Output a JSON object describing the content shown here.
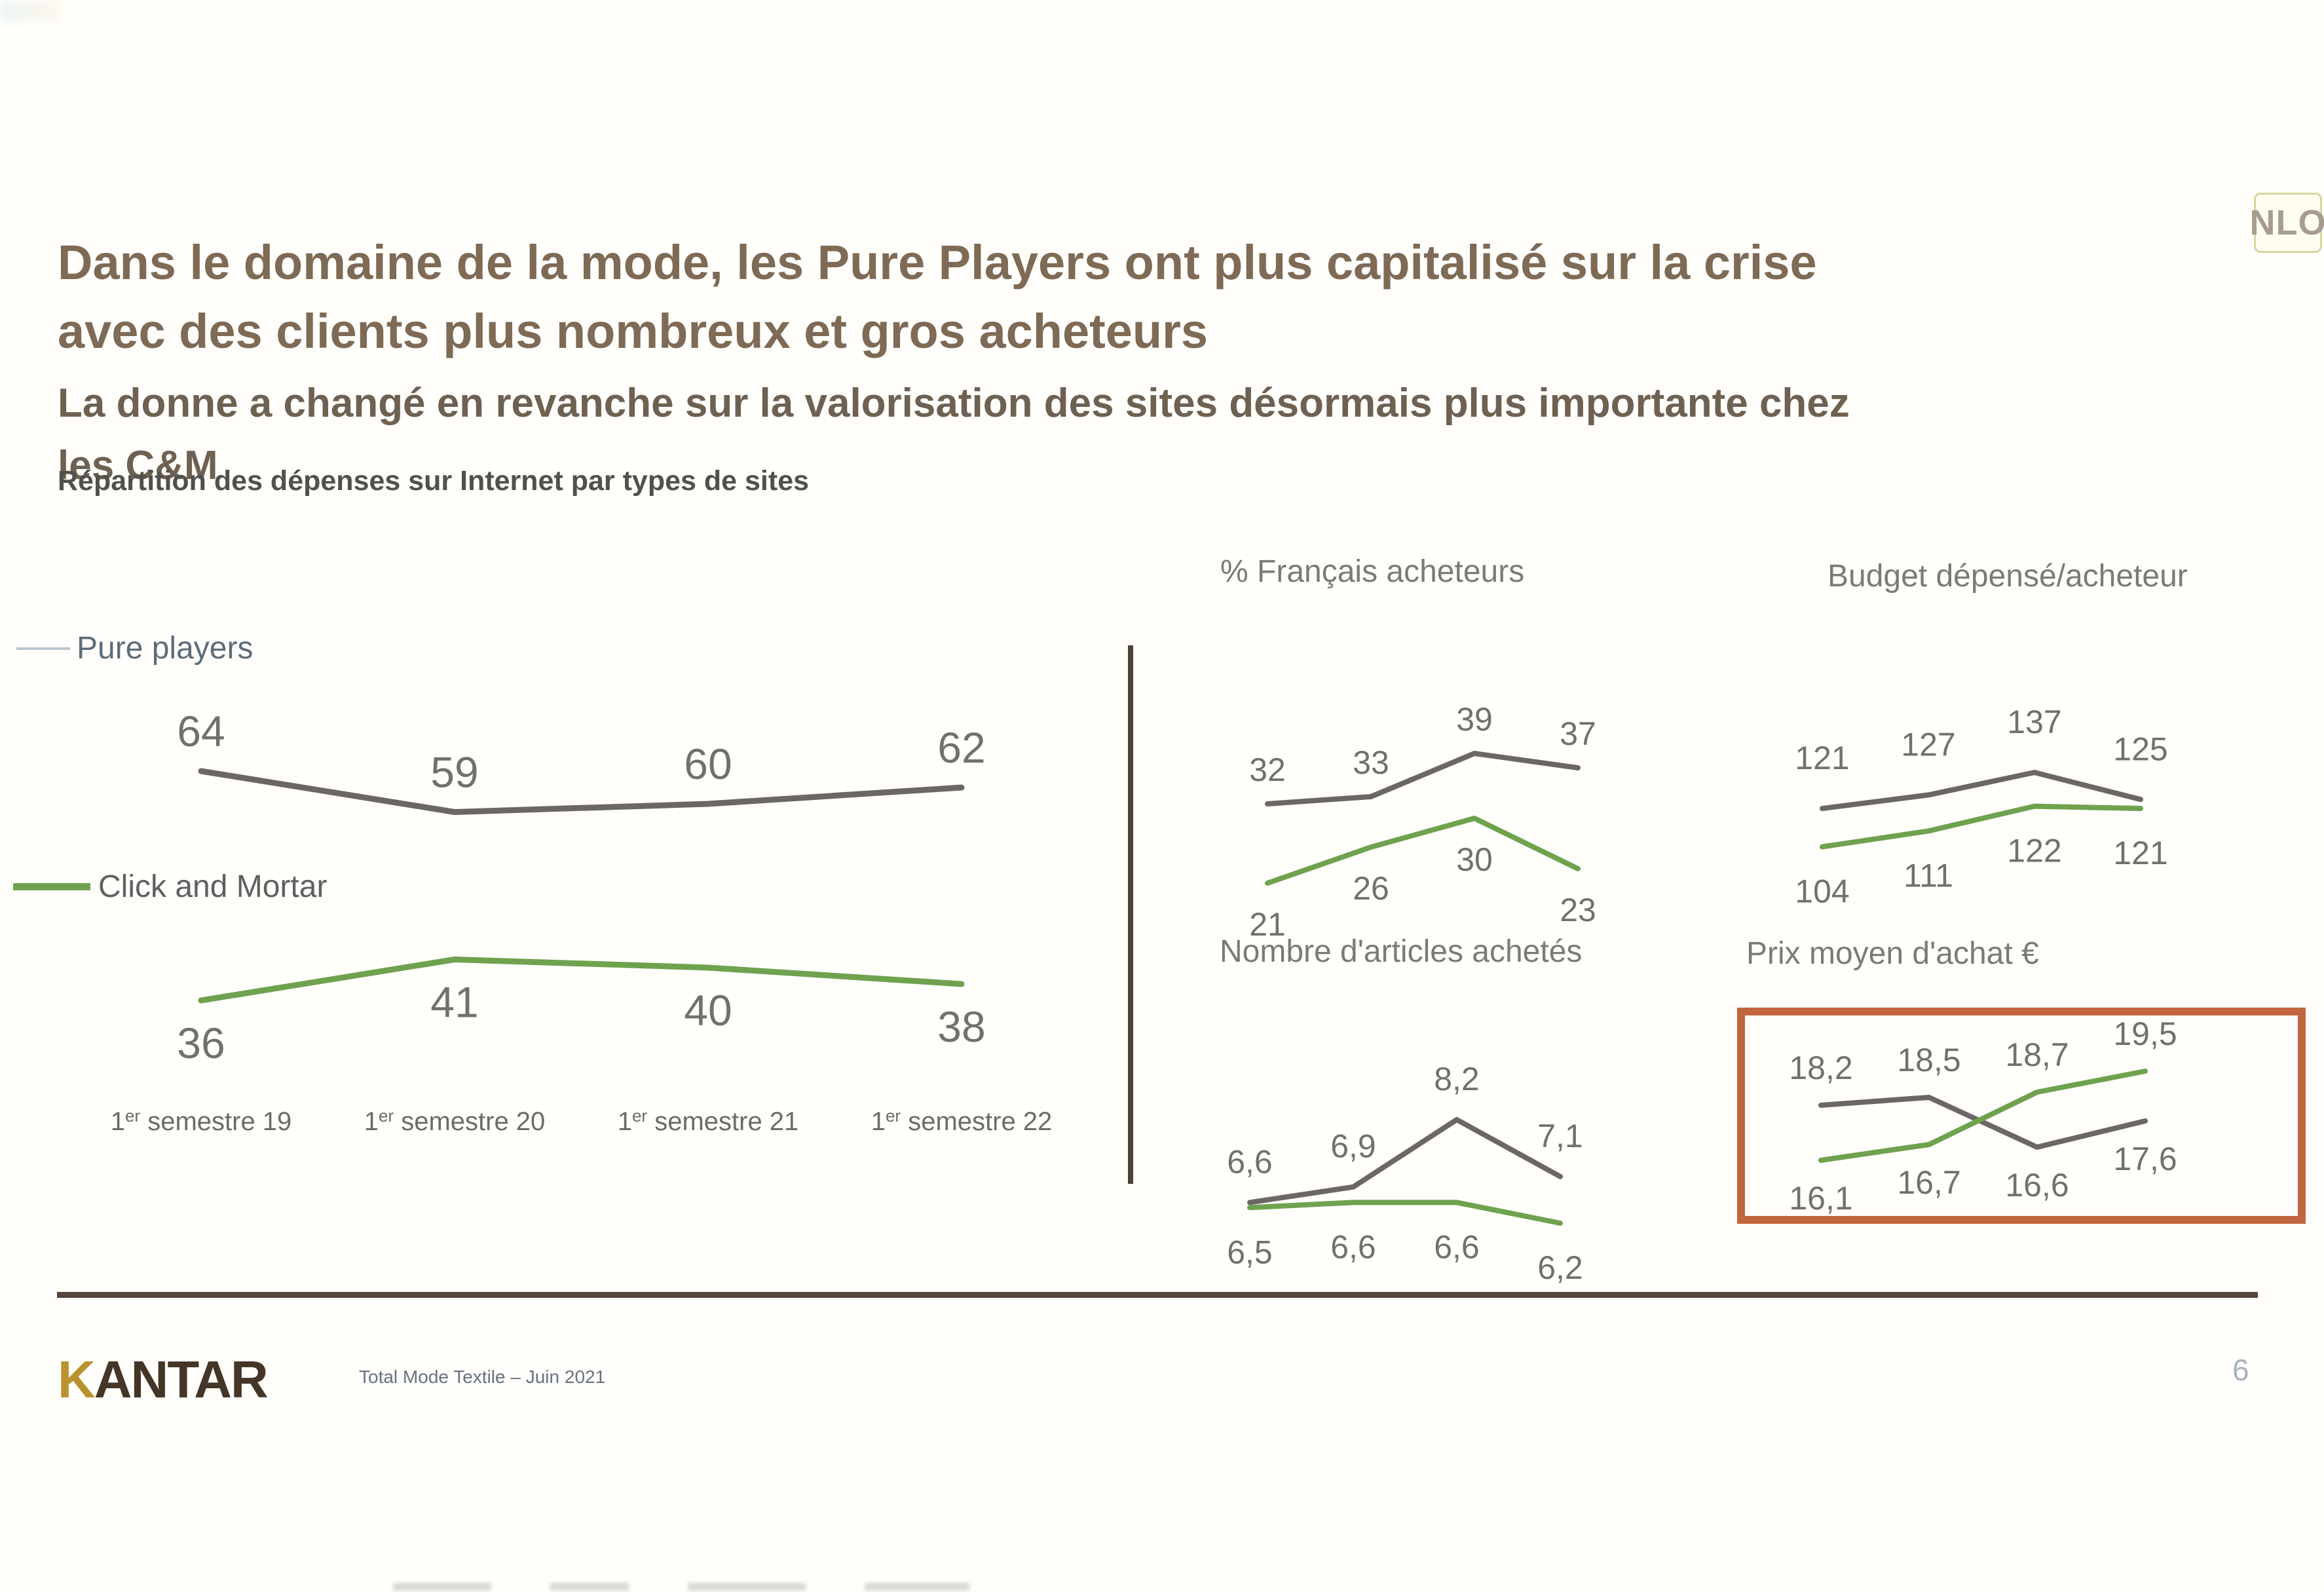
{
  "badge": {
    "label": "NLO"
  },
  "header": {
    "title": "Dans le domaine de la mode, les Pure Players ont plus capitalisé sur la crise\navec des clients plus nombreux et gros acheteurs",
    "subtitle": "La donne a changé en revanche sur la valorisation des sites désormais plus importante chez\nles C&M"
  },
  "colors": {
    "pure_players_line": "#6b6764",
    "cm_line": "#6fa24e",
    "pure_players_legend_swatch": "#b9c6ce",
    "highlight_box": "#c1663e",
    "divider": "#503f34",
    "data_label": "#71706c",
    "axis_label": "#6c6b66",
    "badge_border": "#d8d6a0"
  },
  "chart_data": [
    {
      "id": "main",
      "type": "line",
      "title": "Répartition des dépenses sur Internet par types de sites",
      "categories": [
        "1er semestre 19",
        "1er semestre 20",
        "1er semestre 21",
        "1er semestre 22"
      ],
      "legend_position": "left",
      "grid": false,
      "series": [
        {
          "name": "Pure players",
          "values": [
            64,
            59,
            60,
            62
          ],
          "labels": [
            "64",
            "59",
            "60",
            "62"
          ]
        },
        {
          "name": "Click and Mortar",
          "values": [
            36,
            41,
            40,
            38
          ],
          "labels": [
            "36",
            "41",
            "40",
            "38"
          ]
        }
      ]
    },
    {
      "id": "c1",
      "type": "line",
      "title": "% Français acheteurs",
      "series": [
        {
          "name": "Pure players",
          "values": [
            32,
            33,
            39,
            37
          ],
          "labels": [
            "32",
            "33",
            "39",
            "37"
          ]
        },
        {
          "name": "Click and Mortar",
          "values": [
            21,
            26,
            30,
            23
          ],
          "labels": [
            "21",
            "26",
            "30",
            "23"
          ]
        }
      ]
    },
    {
      "id": "c2",
      "type": "line",
      "title": "Budget dépensé/acheteur",
      "series": [
        {
          "name": "Pure players",
          "values": [
            121,
            127,
            137,
            125
          ],
          "labels": [
            "121",
            "127",
            "137",
            "125"
          ]
        },
        {
          "name": "Click and Mortar",
          "values": [
            104,
            111,
            122,
            121
          ],
          "labels": [
            "104",
            "111",
            "122",
            "121"
          ]
        }
      ]
    },
    {
      "id": "c3",
      "type": "line",
      "title": "Nombre d'articles achetés",
      "series": [
        {
          "name": "Pure players",
          "values": [
            6.6,
            6.9,
            8.2,
            7.1
          ],
          "labels": [
            "6,6",
            "6,9",
            "8,2",
            "7,1"
          ]
        },
        {
          "name": "Click and Mortar",
          "values": [
            6.5,
            6.6,
            6.6,
            6.2
          ],
          "labels": [
            "6,5",
            "6,6",
            "6,6",
            "6,2"
          ]
        }
      ]
    },
    {
      "id": "c4",
      "type": "line",
      "title": "Prix moyen d'achat €",
      "highlighted": true,
      "series": [
        {
          "name": "Pure players",
          "values": [
            18.2,
            18.5,
            16.6,
            17.6
          ],
          "labels": [
            "18,2",
            "18,5",
            "16,6",
            "17,6"
          ]
        },
        {
          "name": "Click and Mortar",
          "values": [
            16.1,
            16.7,
            18.7,
            19.5
          ],
          "labels": [
            "16,1",
            "16,7",
            "18,7",
            "19,5"
          ]
        }
      ]
    }
  ],
  "footer": {
    "brand": "KANTAR",
    "source": "Total Mode Textile – Juin 2021",
    "page": "6"
  }
}
